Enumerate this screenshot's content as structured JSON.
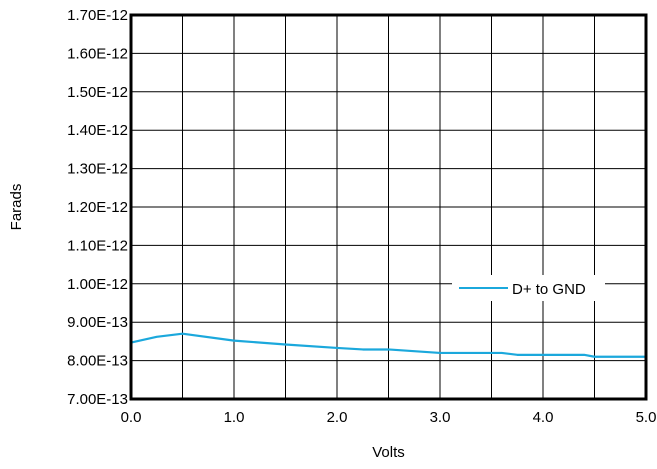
{
  "chart_data": {
    "type": "line",
    "title": "",
    "xlabel": "Volts",
    "ylabel": "Farads",
    "xlim": [
      0.0,
      5.0
    ],
    "ylim": [
      7e-13,
      1.7e-12
    ],
    "x_ticks": [
      0.0,
      1.0,
      2.0,
      3.0,
      4.0,
      5.0
    ],
    "x_tick_labels": [
      "0.0",
      "1.0",
      "2.0",
      "3.0",
      "4.0",
      "5.0"
    ],
    "y_ticks": [
      7e-13,
      8e-13,
      9e-13,
      1e-12,
      1.1e-12,
      1.2e-12,
      1.3e-12,
      1.4e-12,
      1.5e-12,
      1.6e-12,
      1.7e-12
    ],
    "y_tick_labels": [
      "7.00E-13",
      "8.00E-13",
      "9.00E-13",
      "1.00E-12",
      "1.10E-12",
      "1.20E-12",
      "1.30E-12",
      "1.40E-12",
      "1.50E-12",
      "1.60E-12",
      "1.70E-12"
    ],
    "x_grid_step": 0.5,
    "grid": true,
    "legend_position": "right",
    "series": [
      {
        "name": "D+ to GND",
        "color": "#1ba8dc",
        "x": [
          0.0,
          0.25,
          0.5,
          1.0,
          1.5,
          2.0,
          2.25,
          2.5,
          3.0,
          3.5,
          3.6,
          3.75,
          4.0,
          4.4,
          4.5,
          5.0
        ],
        "y": [
          8.47e-13,
          8.62e-13,
          8.7e-13,
          8.52e-13,
          8.42e-13,
          8.33e-13,
          8.29e-13,
          8.29e-13,
          8.2e-13,
          8.2e-13,
          8.2e-13,
          8.15e-13,
          8.15e-13,
          8.15e-13,
          8.1e-13,
          8.1e-13
        ]
      }
    ]
  }
}
